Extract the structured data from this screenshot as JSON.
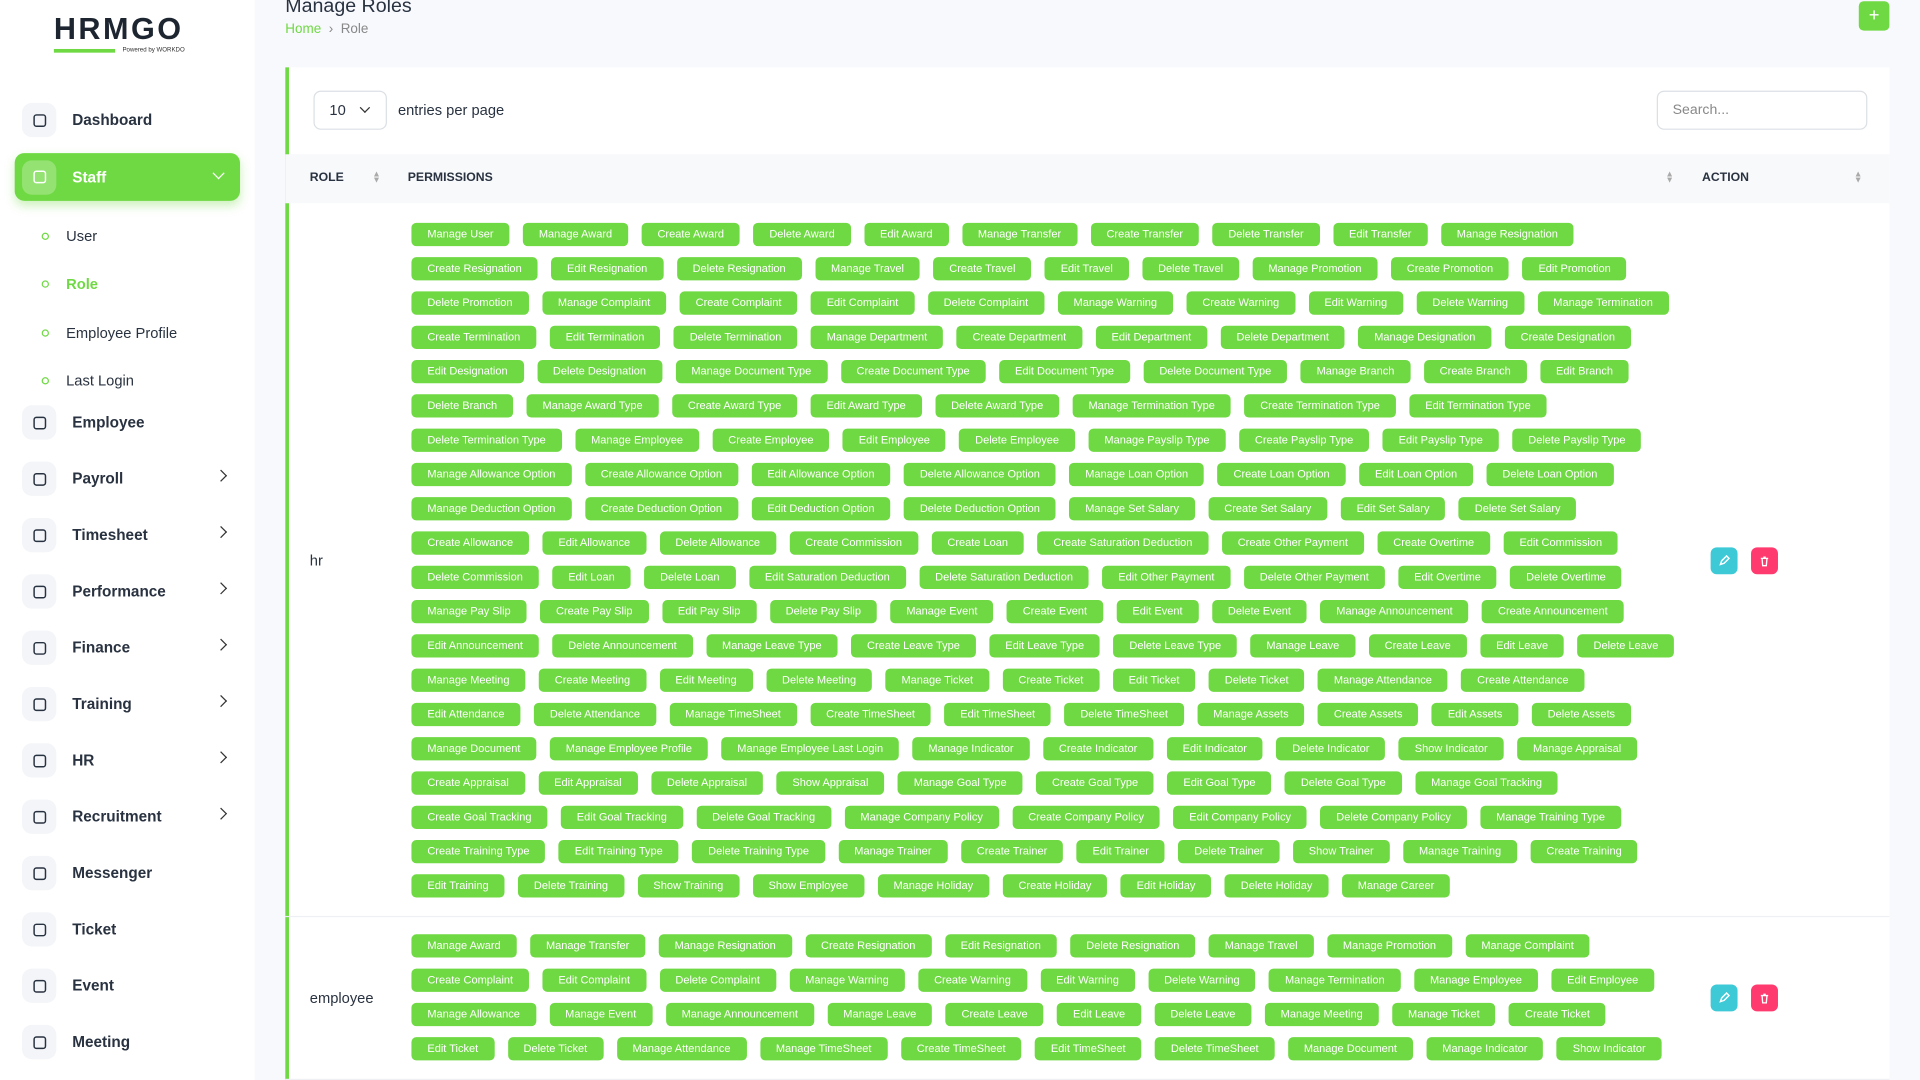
{
  "logo": {
    "text": "HRMGO",
    "tagline": "Powered by WORKDO"
  },
  "sidebar": {
    "items": [
      {
        "label": "Dashboard",
        "expandable": false
      },
      {
        "label": "Staff",
        "expandable": true,
        "active": true,
        "children": [
          "User",
          "Role",
          "Employee Profile",
          "Last Login"
        ]
      },
      {
        "label": "Employee",
        "expandable": false
      },
      {
        "label": "Payroll",
        "expandable": true
      },
      {
        "label": "Timesheet",
        "expandable": true
      },
      {
        "label": "Performance",
        "expandable": true
      },
      {
        "label": "Finance",
        "expandable": true
      },
      {
        "label": "Training",
        "expandable": true
      },
      {
        "label": "HR",
        "expandable": true
      },
      {
        "label": "Recruitment",
        "expandable": true
      },
      {
        "label": "Messenger",
        "expandable": false
      },
      {
        "label": "Ticket",
        "expandable": false
      },
      {
        "label": "Event",
        "expandable": false
      },
      {
        "label": "Meeting",
        "expandable": false
      }
    ],
    "active_child": "Role"
  },
  "header": {
    "title": "Manage Roles",
    "breadcrumb": [
      "Home",
      "Role"
    ]
  },
  "table": {
    "entries_value": 10,
    "entries_label": "entries per page",
    "search_placeholder": "Search...",
    "columns": [
      "ROLE",
      "PERMISSIONS",
      "ACTION"
    ],
    "rows": [
      {
        "role": "hr",
        "permissions": [
          "Manage User",
          "Manage Award",
          "Create Award",
          "Delete Award",
          "Edit Award",
          "Manage Transfer",
          "Create Transfer",
          "Delete Transfer",
          "Edit Transfer",
          "Manage Resignation",
          "Create Resignation",
          "Edit Resignation",
          "Delete Resignation",
          "Manage Travel",
          "Create Travel",
          "Edit Travel",
          "Delete Travel",
          "Manage Promotion",
          "Create Promotion",
          "Edit Promotion",
          "Delete Promotion",
          "Manage Complaint",
          "Create Complaint",
          "Edit Complaint",
          "Delete Complaint",
          "Manage Warning",
          "Create Warning",
          "Edit Warning",
          "Delete Warning",
          "Manage Termination",
          "Create Termination",
          "Edit Termination",
          "Delete Termination",
          "Manage Department",
          "Create Department",
          "Edit Department",
          "Delete Department",
          "Manage Designation",
          "Create Designation",
          "Edit Designation",
          "Delete Designation",
          "Manage Document Type",
          "Create Document Type",
          "Edit Document Type",
          "Delete Document Type",
          "Manage Branch",
          "Create Branch",
          "Edit Branch",
          "Delete Branch",
          "Manage Award Type",
          "Create Award Type",
          "Edit Award Type",
          "Delete Award Type",
          "Manage Termination Type",
          "Create Termination Type",
          "Edit Termination Type",
          "Delete Termination Type",
          "Manage Employee",
          "Create Employee",
          "Edit Employee",
          "Delete Employee",
          "Manage Payslip Type",
          "Create Payslip Type",
          "Edit Payslip Type",
          "Delete Payslip Type",
          "Manage Allowance Option",
          "Create Allowance Option",
          "Edit Allowance Option",
          "Delete Allowance Option",
          "Manage Loan Option",
          "Create Loan Option",
          "Edit Loan Option",
          "Delete Loan Option",
          "Manage Deduction Option",
          "Create Deduction Option",
          "Edit Deduction Option",
          "Delete Deduction Option",
          "Manage Set Salary",
          "Create Set Salary",
          "Edit Set Salary",
          "Delete Set Salary",
          "Create Allowance",
          "Edit Allowance",
          "Delete Allowance",
          "Create Commission",
          "Create Loan",
          "Create Saturation Deduction",
          "Create Other Payment",
          "Create Overtime",
          "Edit Commission",
          "Delete Commission",
          "Edit Loan",
          "Delete Loan",
          "Edit Saturation Deduction",
          "Delete Saturation Deduction",
          "Edit Other Payment",
          "Delete Other Payment",
          "Edit Overtime",
          "Delete Overtime",
          "Manage Pay Slip",
          "Create Pay Slip",
          "Edit Pay Slip",
          "Delete Pay Slip",
          "Manage Event",
          "Create Event",
          "Edit Event",
          "Delete Event",
          "Manage Announcement",
          "Create Announcement",
          "Edit Announcement",
          "Delete Announcement",
          "Manage Leave Type",
          "Create Leave Type",
          "Edit Leave Type",
          "Delete Leave Type",
          "Manage Leave",
          "Create Leave",
          "Edit Leave",
          "Delete Leave",
          "Manage Meeting",
          "Create Meeting",
          "Edit Meeting",
          "Delete Meeting",
          "Manage Ticket",
          "Create Ticket",
          "Edit Ticket",
          "Delete Ticket",
          "Manage Attendance",
          "Create Attendance",
          "Edit Attendance",
          "Delete Attendance",
          "Manage TimeSheet",
          "Create TimeSheet",
          "Edit TimeSheet",
          "Delete TimeSheet",
          "Manage Assets",
          "Create Assets",
          "Edit Assets",
          "Delete Assets",
          "Manage Document",
          "Manage Employee Profile",
          "Manage Employee Last Login",
          "Manage Indicator",
          "Create Indicator",
          "Edit Indicator",
          "Delete Indicator",
          "Show Indicator",
          "Manage Appraisal",
          "Create Appraisal",
          "Edit Appraisal",
          "Delete Appraisal",
          "Show Appraisal",
          "Manage Goal Type",
          "Create Goal Type",
          "Edit Goal Type",
          "Delete Goal Type",
          "Manage Goal Tracking",
          "Create Goal Tracking",
          "Edit Goal Tracking",
          "Delete Goal Tracking",
          "Manage Company Policy",
          "Create Company Policy",
          "Edit Company Policy",
          "Delete Company Policy",
          "Manage Training Type",
          "Create Training Type",
          "Edit Training Type",
          "Delete Training Type",
          "Manage Trainer",
          "Create Trainer",
          "Edit Trainer",
          "Delete Trainer",
          "Show Trainer",
          "Manage Training",
          "Create Training",
          "Edit Training",
          "Delete Training",
          "Show Training",
          "Show Employee",
          "Manage Holiday",
          "Create Holiday",
          "Edit Holiday",
          "Delete Holiday",
          "Manage Career"
        ]
      },
      {
        "role": "employee",
        "permissions": [
          "Manage Award",
          "Manage Transfer",
          "Manage Resignation",
          "Create Resignation",
          "Edit Resignation",
          "Delete Resignation",
          "Manage Travel",
          "Manage Promotion",
          "Manage Complaint",
          "Create Complaint",
          "Edit Complaint",
          "Delete Complaint",
          "Manage Warning",
          "Create Warning",
          "Edit Warning",
          "Delete Warning",
          "Manage Termination",
          "Manage Employee",
          "Edit Employee",
          "Manage Allowance",
          "Manage Event",
          "Manage Announcement",
          "Manage Leave",
          "Create Leave",
          "Edit Leave",
          "Delete Leave",
          "Manage Meeting",
          "Manage Ticket",
          "Create Ticket",
          "Edit Ticket",
          "Delete Ticket",
          "Manage Attendance",
          "Manage TimeSheet",
          "Create TimeSheet",
          "Edit TimeSheet",
          "Delete TimeSheet",
          "Manage Document",
          "Manage Indicator",
          "Show Indicator"
        ]
      }
    ]
  }
}
